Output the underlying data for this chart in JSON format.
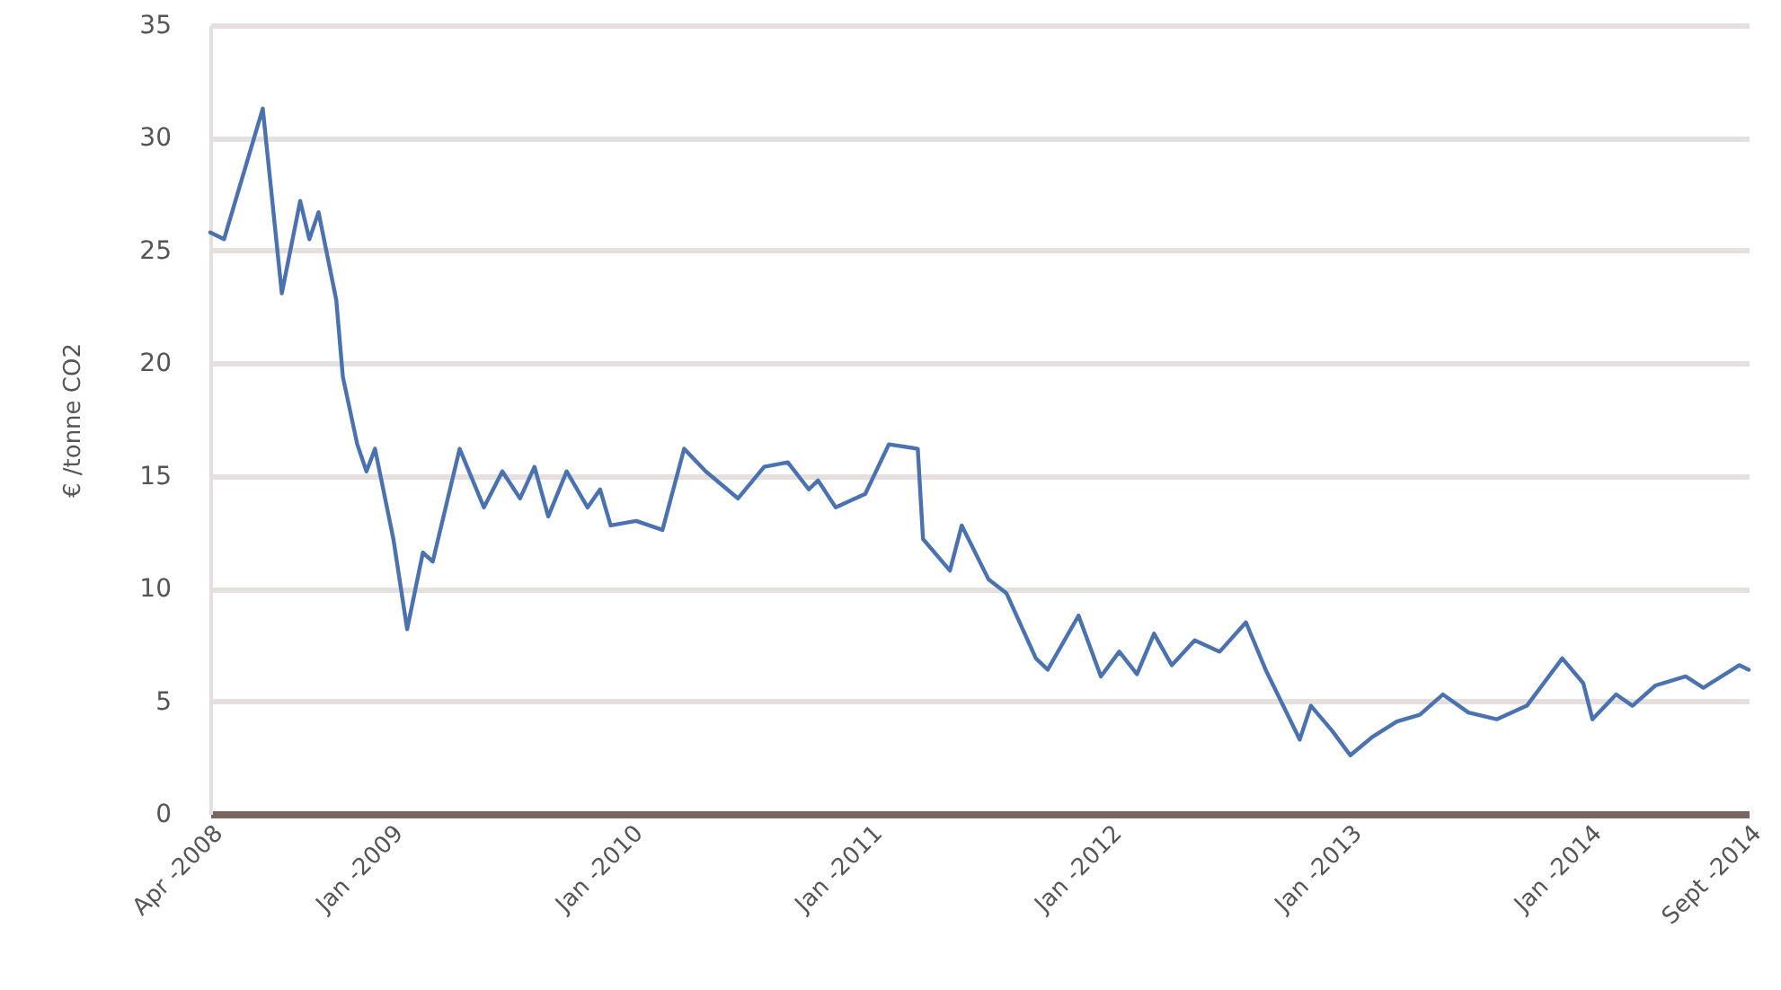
{
  "chart_data": {
    "type": "line",
    "ylabel": "€ /tonne CO2",
    "x": [
      "2008-04-01",
      "2008-04-22",
      "2008-06-20",
      "2008-07-19",
      "2008-08-16",
      "2008-08-30",
      "2008-09-13",
      "2008-10-10",
      "2008-10-20",
      "2008-11-11",
      "2008-11-25",
      "2008-12-08",
      "2009-01-05",
      "2009-01-26",
      "2009-02-19",
      "2009-03-06",
      "2009-04-16",
      "2009-05-23",
      "2009-06-20",
      "2009-07-17",
      "2009-08-08",
      "2009-08-29",
      "2009-09-26",
      "2009-10-28",
      "2009-11-16",
      "2009-12-02",
      "2010-01-10",
      "2010-02-19",
      "2010-03-24",
      "2010-04-26",
      "2010-06-14",
      "2010-07-24",
      "2010-08-29",
      "2010-09-30",
      "2010-10-14",
      "2010-11-10",
      "2010-12-25",
      "2011-01-30",
      "2011-03-15",
      "2011-03-23",
      "2011-05-03",
      "2011-05-21",
      "2011-07-01",
      "2011-07-28",
      "2011-09-11",
      "2011-09-29",
      "2011-11-15",
      "2011-12-19",
      "2012-01-16",
      "2012-02-12",
      "2012-03-09",
      "2012-04-05",
      "2012-05-10",
      "2012-06-17",
      "2012-07-27",
      "2012-08-26",
      "2012-10-17",
      "2012-11-03",
      "2012-12-05",
      "2013-01-02",
      "2013-02-04",
      "2013-03-14",
      "2013-04-18",
      "2013-05-23",
      "2013-07-01",
      "2013-08-13",
      "2013-09-28",
      "2013-11-21",
      "2013-12-23",
      "2014-01-06",
      "2014-02-11",
      "2014-03-08",
      "2014-04-12",
      "2014-05-28",
      "2014-06-24",
      "2014-08-18",
      "2014-09-01"
    ],
    "series": [
      {
        "color": "#4a72b0",
        "values": [
          25.8,
          25.5,
          31.3,
          23.1,
          27.2,
          25.5,
          26.7,
          22.8,
          19.4,
          16.4,
          15.2,
          16.2,
          12.2,
          8.2,
          11.6,
          11.2,
          16.2,
          13.6,
          15.2,
          14.0,
          15.4,
          13.2,
          15.2,
          13.6,
          14.4,
          12.8,
          13.0,
          12.6,
          16.2,
          15.2,
          14.0,
          15.4,
          15.6,
          14.4,
          14.8,
          13.6,
          14.2,
          16.4,
          16.2,
          12.2,
          10.8,
          12.8,
          10.4,
          9.8,
          6.9,
          6.4,
          8.8,
          6.1,
          7.2,
          6.2,
          8.0,
          6.6,
          7.7,
          7.2,
          8.5,
          6.4,
          3.3,
          4.8,
          3.7,
          2.6,
          3.4,
          4.1,
          4.4,
          5.3,
          4.5,
          4.2,
          4.8,
          6.9,
          5.8,
          4.2,
          5.3,
          4.8,
          5.7,
          6.1,
          5.6,
          6.6,
          6.4
        ]
      }
    ],
    "xlim": [
      "2008-04-01",
      "2014-09-01"
    ],
    "xticks": [
      {
        "value": "2008-04-01",
        "label": "Apr -2008"
      },
      {
        "value": "2009-01-01",
        "label": "Jan -2009"
      },
      {
        "value": "2010-01-01",
        "label": "Jan -2010"
      },
      {
        "value": "2011-01-01",
        "label": "Jan -2011"
      },
      {
        "value": "2012-01-01",
        "label": "Jan -2012"
      },
      {
        "value": "2013-01-01",
        "label": "Jan -2013"
      },
      {
        "value": "2014-01-01",
        "label": "Jan -2014"
      },
      {
        "value": "2014-09-01",
        "label": "Sept -2014"
      }
    ],
    "ylim": [
      0,
      35
    ],
    "yticks": [
      0,
      5,
      10,
      15,
      20,
      25,
      30,
      35
    ],
    "grid": "y",
    "marker": "none",
    "line_style": "solid"
  }
}
